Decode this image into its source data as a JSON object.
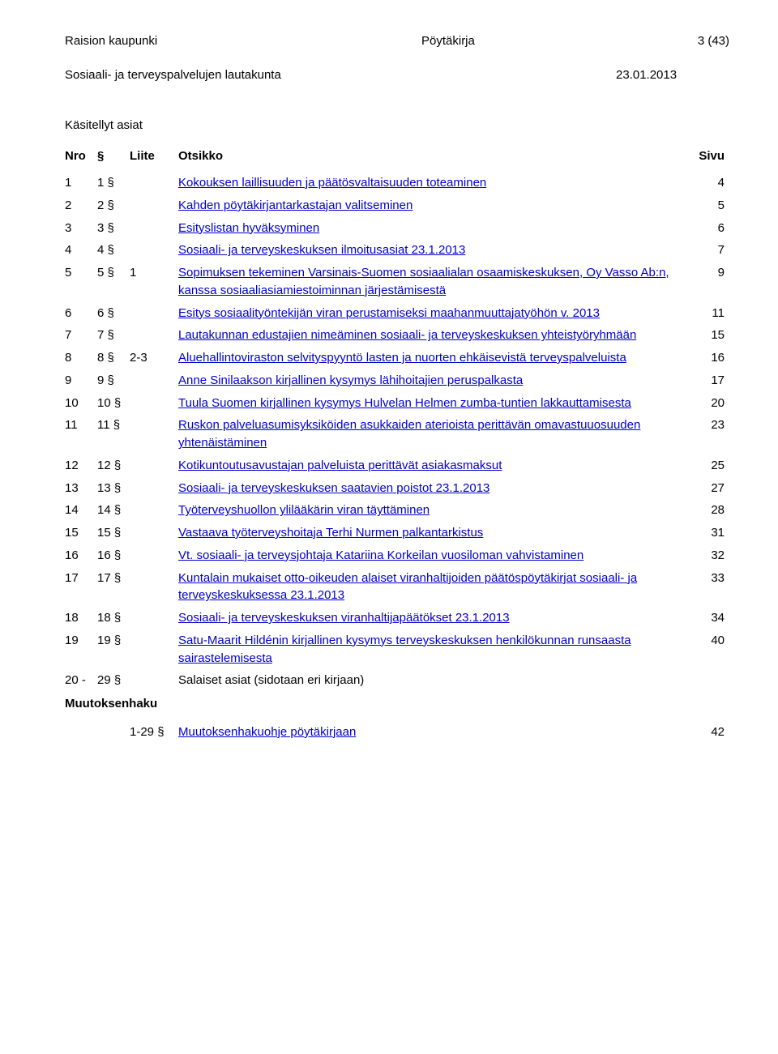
{
  "header": {
    "org": "Raision kaupunki",
    "doc": "Pöytäkirja",
    "page": "3 (43)",
    "committee": "Sosiaali- ja terveyspalvelujen lautakunta",
    "date": "23.01.2013"
  },
  "section_title": "Käsitellyt asiat",
  "columns": {
    "nro": "Nro",
    "sec": "§",
    "liite": "Liite",
    "title": "Otsikko",
    "page": "Sivu"
  },
  "rows": [
    {
      "nro": "1",
      "sec": "1 §",
      "liite": "",
      "title": "Kokouksen laillisuuden ja päätösvaltaisuuden toteaminen",
      "page": "4",
      "link": true
    },
    {
      "nro": "2",
      "sec": "2 §",
      "liite": "",
      "title": "Kahden pöytäkirjantarkastajan valitseminen",
      "page": "5",
      "link": true
    },
    {
      "nro": "3",
      "sec": "3 §",
      "liite": "",
      "title": "Esityslistan hyväksyminen",
      "page": "6",
      "link": true
    },
    {
      "nro": "4",
      "sec": "4 §",
      "liite": "",
      "title": "Sosiaali- ja terveyskeskuksen ilmoitusasiat 23.1.2013",
      "page": "7",
      "link": true
    },
    {
      "nro": "5",
      "sec": "5 §",
      "liite": "1",
      "title": "Sopimuksen tekeminen Varsinais-Suomen sosiaalialan osaamiskeskuksen, Oy Vasso Ab:n, kanssa sosiaaliasiamiestoiminnan järjestämisestä",
      "page": "9",
      "link": true
    },
    {
      "nro": "6",
      "sec": "6 §",
      "liite": "",
      "title": "Esitys sosiaalityöntekijän viran perustamiseksi maahanmuuttajatyöhön v. 2013",
      "page": "11",
      "link": true
    },
    {
      "nro": "7",
      "sec": "7 §",
      "liite": "",
      "title": "Lautakunnan edustajien nimeäminen sosiaali- ja terveyskeskuksen yhteistyöryhmään",
      "page": "15",
      "link": true
    },
    {
      "nro": "8",
      "sec": "8 §",
      "liite": "2-3",
      "title": "Aluehallintoviraston selvityspyyntö lasten ja nuorten ehkäisevistä terveyspalveluista",
      "page": "16",
      "link": true
    },
    {
      "nro": "9",
      "sec": "9 §",
      "liite": "",
      "title": "Anne Sinilaakson kirjallinen kysymys lähihoitajien peruspalkasta",
      "page": "17",
      "link": true
    },
    {
      "nro": "10",
      "sec": "10 §",
      "liite": "",
      "title": "Tuula Suomen kirjallinen kysymys Hulvelan Helmen zumba-tuntien lakkauttamisesta",
      "page": "20",
      "link": true
    },
    {
      "nro": "11",
      "sec": "11 §",
      "liite": "",
      "title": "Ruskon palveluasumisyksiköiden asukkaiden aterioista perittävän   omavastuuosuuden yhtenäistäminen",
      "page": "23",
      "link": true
    },
    {
      "nro": "12",
      "sec": "12 §",
      "liite": "",
      "title": "Kotikuntoutusavustajan palveluista perittävät asiakasmaksut",
      "page": "25",
      "link": true
    },
    {
      "nro": "13",
      "sec": "13 §",
      "liite": "",
      "title": "Sosiaali- ja terveyskeskuksen saatavien poistot 23.1.2013",
      "page": "27",
      "link": true
    },
    {
      "nro": "14",
      "sec": "14 §",
      "liite": "",
      "title": "Työterveyshuollon ylilääkärin viran täyttäminen",
      "page": "28",
      "link": true
    },
    {
      "nro": "15",
      "sec": "15 §",
      "liite": "",
      "title": " Vastaava työterveyshoitaja Terhi Nurmen palkantarkistus",
      "page": "31",
      "link": true
    },
    {
      "nro": "16",
      "sec": "16 §",
      "liite": "",
      "title": "Vt. sosiaali- ja terveysjohtaja Katariina Korkeilan vuosiloman vahvistaminen",
      "page": "32",
      "link": true
    },
    {
      "nro": "17",
      "sec": "17 §",
      "liite": "",
      "title": "Kuntalain mukaiset otto-oikeuden alaiset viranhaltijoiden päätöspöytäkirjat sosiaali- ja terveyskeskuksessa 23.1.2013",
      "page": "33",
      "link": true
    },
    {
      "nro": "18",
      "sec": "18 §",
      "liite": "",
      "title": "Sosiaali- ja terveyskeskuksen viranhaltijapäätökset 23.1.2013",
      "page": "34",
      "link": true
    },
    {
      "nro": "19",
      "sec": "19 §",
      "liite": "",
      "title": "Satu-Maarit Hildénin kirjallinen kysymys terveyskeskuksen henkilökunnan runsaasta sairastelemisesta",
      "page": "40",
      "link": true
    }
  ],
  "salaiset": {
    "nro": "20 -",
    "sec": "29 §",
    "title": "Salaiset asiat (sidotaan eri kirjaan)"
  },
  "muutoksenhaku_label": "Muutoksenhaku",
  "muutoksenhaku_row": {
    "liite": "1-29 §",
    "title": "Muutoksenhakuohje pöytäkirjaan",
    "page": "42"
  }
}
